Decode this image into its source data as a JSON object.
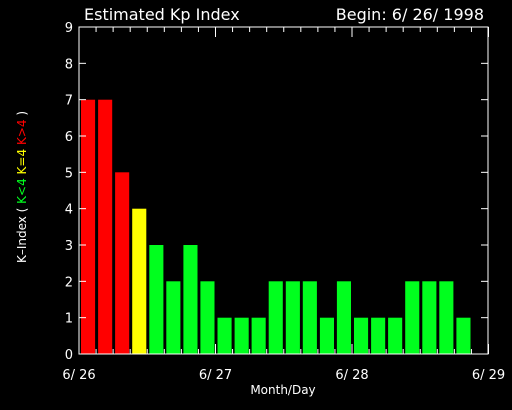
{
  "chart_data": {
    "type": "bar",
    "title": "Estimated Kp Index",
    "begin_label": "Begin: 6/ 26/ 1998",
    "xlabel": "Month/Day",
    "ylabel": {
      "prefix": "K–Index  ( ",
      "low": "K<4",
      "mid": "K=4",
      "high": "K>4",
      "suffix": " )"
    },
    "ylim": [
      0,
      9
    ],
    "yticks": [
      "0",
      "1",
      "2",
      "3",
      "4",
      "5",
      "6",
      "7",
      "8",
      "9"
    ],
    "x_tick_labels": [
      "6/ 26",
      "6/ 27",
      "6/ 28",
      "6/ 29"
    ],
    "interval_hours": 3,
    "values": [
      7,
      7,
      5,
      4,
      3,
      2,
      3,
      2,
      1,
      1,
      1,
      2,
      2,
      2,
      1,
      2,
      1,
      1,
      1,
      2,
      2,
      2,
      1
    ],
    "colors": {
      "low": "#00ff1e",
      "mid": "#ffff00",
      "high": "#ff0000",
      "frame": "#ffffff",
      "background": "#000000"
    }
  }
}
